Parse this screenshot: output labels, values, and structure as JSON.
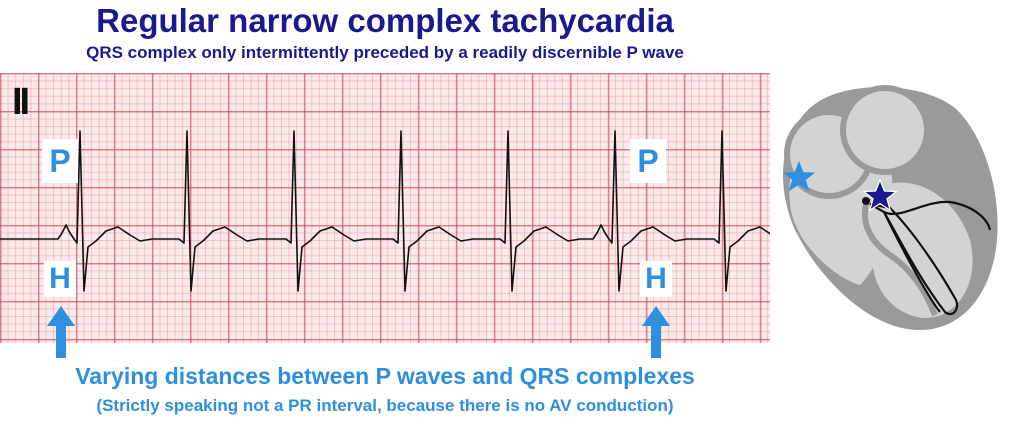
{
  "title": "Regular narrow complex tachycardia",
  "subtitle": "QRS complex only intermittently preceded by a readily discernible P wave",
  "strip": {
    "lead": "II",
    "p_label": "P",
    "h_label": "H"
  },
  "caption": {
    "main": "Varying distances between P waves and QRS complexes",
    "note": "(Strictly speaking not a PR interval, because there is no AV conduction)"
  },
  "colors": {
    "title": "#1a1a8c",
    "accent": "#2e8fe0",
    "grid_major": "#cd3c4b",
    "grid_minor": "#e68c96",
    "paper": "#fbeaea",
    "heart_outer": "#9a9a9a",
    "heart_inner": "#d3d3d3",
    "star_sinus": "#2e8fe0",
    "star_junction": "#1a1a8c"
  },
  "icons": {
    "up_arrow": "up-arrow-icon",
    "star_sinus": "star-icon",
    "star_junction": "star-icon"
  }
}
